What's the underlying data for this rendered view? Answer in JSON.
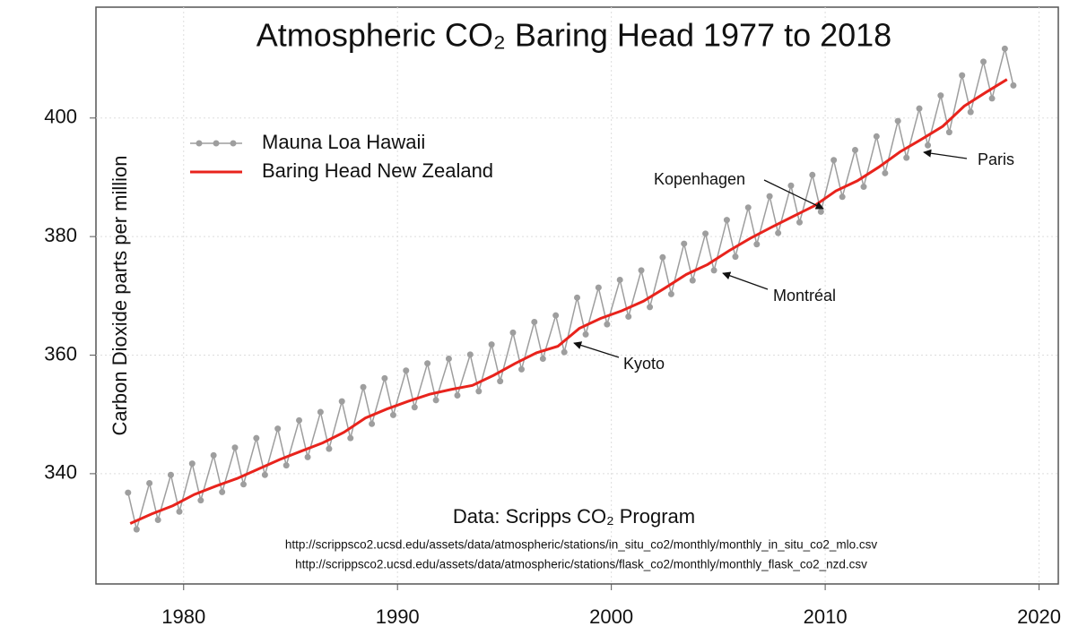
{
  "chart_data": {
    "type": "line",
    "title": "Atmospheric CO₂ Baring Head 1977 to 2018",
    "y_label": "Carbon Dioxide parts per million",
    "source": "Data: Scripps CO₂ Program",
    "source_urls": [
      "http://scrippsco2.ucsd.edu/assets/data/atmospheric/stations/in_situ_co2/monthly/monthly_in_situ_co2_mlo.csv",
      "http://scrippsco2.ucsd.edu/assets/data/atmospheric/stations/flask_co2/monthly/monthly_flask_co2_nzd.csv"
    ],
    "annotations": [
      "Kopenhagen",
      "Montréal",
      "Kyoto",
      "Paris"
    ],
    "xlim": [
      1975.9,
      2020.9
    ],
    "xticks": [
      1980,
      1990,
      2000,
      2010,
      2020
    ],
    "ylim": [
      321.4,
      418.7
    ],
    "yticks": [
      340,
      360,
      380,
      400
    ],
    "grid": true,
    "legend": "upper left",
    "series": [
      {
        "name": "Mauna Loa Hawaii",
        "color": "#9e9e9e",
        "x": [
          1977.4,
          1977.8,
          1978.4,
          1978.8,
          1979.4,
          1979.8,
          1980.4,
          1980.8,
          1981.4,
          1981.8,
          1982.4,
          1982.8,
          1983.4,
          1983.8,
          1984.4,
          1984.8,
          1985.4,
          1985.8,
          1986.4,
          1986.8,
          1987.4,
          1987.8,
          1988.4,
          1988.8,
          1989.4,
          1989.8,
          1990.4,
          1990.8,
          1991.4,
          1991.8,
          1992.4,
          1992.8,
          1993.4,
          1993.8,
          1994.4,
          1994.8,
          1995.4,
          1995.8,
          1996.4,
          1996.8,
          1997.4,
          1997.8,
          1998.4,
          1998.8,
          1999.4,
          1999.8,
          2000.4,
          2000.8,
          2001.4,
          2001.8,
          2002.4,
          2002.8,
          2003.4,
          2003.8,
          2004.4,
          2004.8,
          2005.4,
          2005.8,
          2006.4,
          2006.8,
          2007.4,
          2007.8,
          2008.4,
          2008.8,
          2009.4,
          2009.8,
          2010.4,
          2010.8,
          2011.4,
          2011.8,
          2012.4,
          2012.8,
          2013.4,
          2013.8,
          2014.4,
          2014.8,
          2015.4,
          2015.8,
          2016.4,
          2016.8,
          2017.4,
          2017.8,
          2018.4,
          2018.8
        ],
        "values": [
          336.8,
          330.6,
          338.4,
          332.2,
          339.8,
          333.6,
          341.7,
          335.5,
          343.1,
          336.9,
          344.4,
          338.2,
          346.0,
          339.8,
          347.6,
          341.4,
          349.0,
          342.8,
          350.4,
          344.2,
          352.2,
          346.0,
          354.6,
          348.4,
          356.1,
          349.9,
          357.4,
          351.2,
          358.6,
          352.4,
          359.4,
          353.2,
          360.1,
          353.9,
          361.8,
          355.6,
          363.8,
          357.6,
          365.6,
          359.4,
          366.7,
          360.5,
          369.7,
          363.5,
          371.4,
          365.2,
          372.7,
          366.5,
          374.3,
          368.1,
          376.5,
          370.3,
          378.8,
          372.6,
          380.5,
          374.3,
          382.8,
          376.6,
          384.9,
          378.7,
          386.8,
          380.6,
          388.6,
          382.4,
          390.4,
          384.2,
          392.9,
          386.7,
          394.6,
          388.4,
          396.9,
          390.7,
          399.5,
          393.3,
          401.6,
          395.4,
          403.8,
          397.6,
          407.2,
          401.0,
          409.5,
          403.3,
          411.7,
          405.5
        ]
      },
      {
        "name": "Baring Head New Zealand",
        "color": "#e8231c",
        "x": [
          1977.5,
          1978.5,
          1979.5,
          1980.5,
          1981.5,
          1982.5,
          1983.5,
          1984.5,
          1985.5,
          1986.5,
          1987.5,
          1988.5,
          1989.5,
          1990.5,
          1991.5,
          1992.5,
          1993.5,
          1994.5,
          1995.5,
          1996.5,
          1997.5,
          1998.5,
          1999.5,
          2000.5,
          2001.5,
          2002.5,
          2003.5,
          2004.5,
          2005.5,
          2006.5,
          2007.5,
          2008.5,
          2009.5,
          2010.5,
          2011.5,
          2012.5,
          2013.5,
          2014.5,
          2015.5,
          2016.5,
          2017.5,
          2018.5
        ],
        "values": [
          331.6,
          333.2,
          334.6,
          336.5,
          337.9,
          339.2,
          340.8,
          342.4,
          343.8,
          345.2,
          347.0,
          349.4,
          350.9,
          352.2,
          353.4,
          354.2,
          354.9,
          356.6,
          358.6,
          360.4,
          361.5,
          364.5,
          366.2,
          367.5,
          369.1,
          371.3,
          373.6,
          375.3,
          377.6,
          379.7,
          381.6,
          383.4,
          385.2,
          387.7,
          389.4,
          391.7,
          394.3,
          396.4,
          398.6,
          402.0,
          404.3,
          406.5
        ]
      }
    ]
  }
}
